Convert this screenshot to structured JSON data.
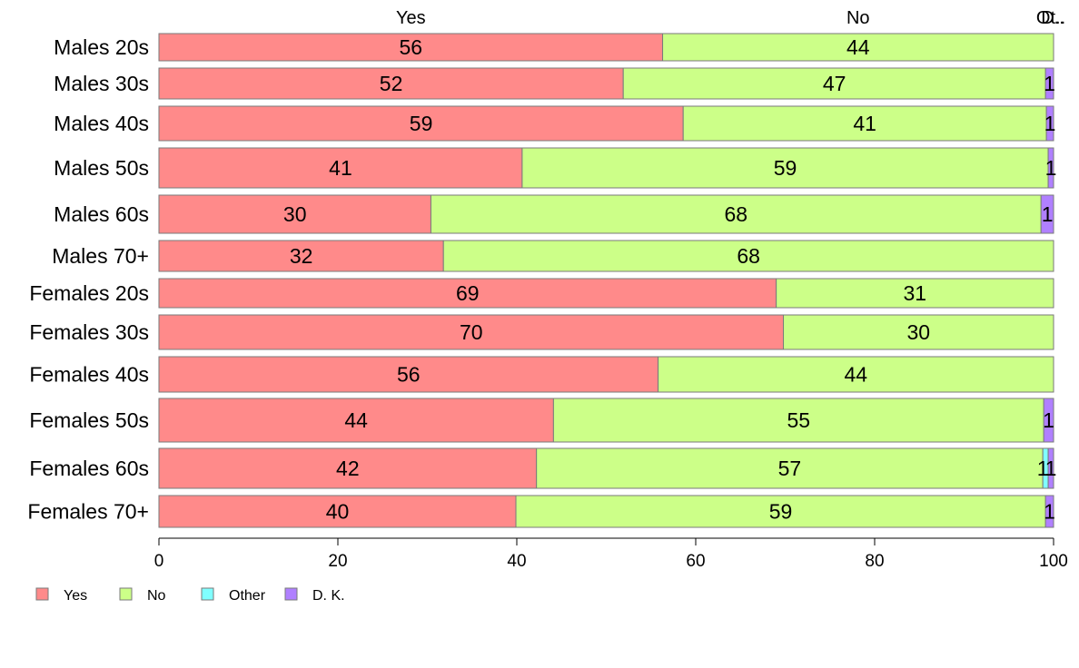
{
  "chart_data": {
    "type": "bar",
    "orientation": "horizontal",
    "stacked": true,
    "xlim": [
      0,
      100
    ],
    "x_ticks": [
      "0",
      "20",
      "40",
      "60",
      "80",
      "100"
    ],
    "top_labels": [
      "Yes",
      "No",
      "Ot..",
      "D.."
    ],
    "categories": [
      "Males 20s",
      "Males 30s",
      "Males 40s",
      "Males 50s",
      "Males 60s",
      "Males 70+",
      "Females 20s",
      "Females 30s",
      "Females 40s",
      "Females 50s",
      "Females 60s",
      "Females 70+"
    ],
    "series": [
      {
        "name": "Yes",
        "color": "#ff8a8a",
        "values": [
          56.3,
          51.9,
          58.6,
          40.6,
          30.4,
          31.8,
          69.0,
          69.8,
          55.8,
          44.1,
          42.2,
          39.9
        ]
      },
      {
        "name": "No",
        "color": "#ccff88",
        "values": [
          43.7,
          47.2,
          40.6,
          58.8,
          68.2,
          68.2,
          31.0,
          30.2,
          44.2,
          54.8,
          56.6,
          59.2
        ]
      },
      {
        "name": "Other",
        "color": "#80ffff",
        "values": [
          0,
          0,
          0,
          0,
          0,
          0,
          0,
          0,
          0,
          0,
          0.6,
          0
        ]
      },
      {
        "name": "D. K.",
        "color": "#b080ff",
        "values": [
          0,
          0.9,
          0.8,
          0.6,
          1.4,
          0,
          0,
          0,
          0,
          1.1,
          0.6,
          0.9
        ]
      }
    ],
    "data_labels": [
      [
        "56",
        "44",
        "",
        ""
      ],
      [
        "52",
        "47",
        "",
        "1"
      ],
      [
        "59",
        "41",
        "",
        "1"
      ],
      [
        "41",
        "59",
        "",
        "1"
      ],
      [
        "30",
        "68",
        "",
        "1"
      ],
      [
        "32",
        "68",
        "",
        ""
      ],
      [
        "69",
        "31",
        "",
        ""
      ],
      [
        "70",
        "30",
        "",
        ""
      ],
      [
        "56",
        "44",
        "",
        ""
      ],
      [
        "44",
        "55",
        "",
        "1"
      ],
      [
        "42",
        "57",
        "1",
        "1"
      ],
      [
        "40",
        "59",
        "",
        "1"
      ]
    ],
    "legend": {
      "position": "bottom-left",
      "items": [
        "Yes",
        "No",
        "Other",
        "D. K."
      ]
    },
    "grid": false
  }
}
